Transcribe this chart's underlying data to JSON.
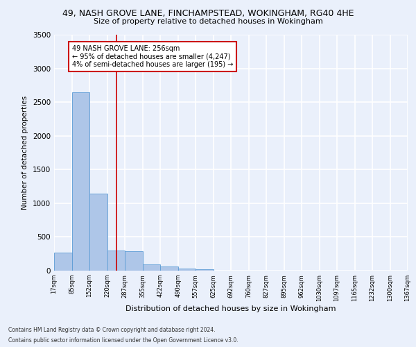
{
  "title1": "49, NASH GROVE LANE, FINCHAMPSTEAD, WOKINGHAM, RG40 4HE",
  "title2": "Size of property relative to detached houses in Wokingham",
  "xlabel": "Distribution of detached houses by size in Wokingham",
  "ylabel": "Number of detached properties",
  "bin_labels": [
    "17sqm",
    "85sqm",
    "152sqm",
    "220sqm",
    "287sqm",
    "355sqm",
    "422sqm",
    "490sqm",
    "557sqm",
    "625sqm",
    "692sqm",
    "760sqm",
    "827sqm",
    "895sqm",
    "962sqm",
    "1030sqm",
    "1097sqm",
    "1165sqm",
    "1232sqm",
    "1300sqm",
    "1367sqm"
  ],
  "bar_values": [
    270,
    2650,
    1145,
    295,
    285,
    90,
    60,
    35,
    20,
    0,
    0,
    0,
    0,
    0,
    0,
    0,
    0,
    0,
    0,
    0
  ],
  "bin_edges": [
    17,
    85,
    152,
    220,
    287,
    355,
    422,
    490,
    557,
    625,
    692,
    760,
    827,
    895,
    962,
    1030,
    1097,
    1165,
    1232,
    1300,
    1367
  ],
  "bar_color": "#aec6e8",
  "bar_edge_color": "#5b9bd5",
  "vline_x": 256,
  "vline_color": "#cc0000",
  "annotation_title": "49 NASH GROVE LANE: 256sqm",
  "annotation_line1": "← 95% of detached houses are smaller (4,247)",
  "annotation_line2": "4% of semi-detached houses are larger (195) →",
  "annotation_box_color": "#cc0000",
  "ylim": [
    0,
    3500
  ],
  "yticks": [
    0,
    500,
    1000,
    1500,
    2000,
    2500,
    3000,
    3500
  ],
  "footnote1": "Contains HM Land Registry data © Crown copyright and database right 2024.",
  "footnote2": "Contains public sector information licensed under the Open Government Licence v3.0.",
  "background_color": "#eaf0fb",
  "plot_bg_color": "#eaf0fb",
  "grid_color": "#ffffff"
}
